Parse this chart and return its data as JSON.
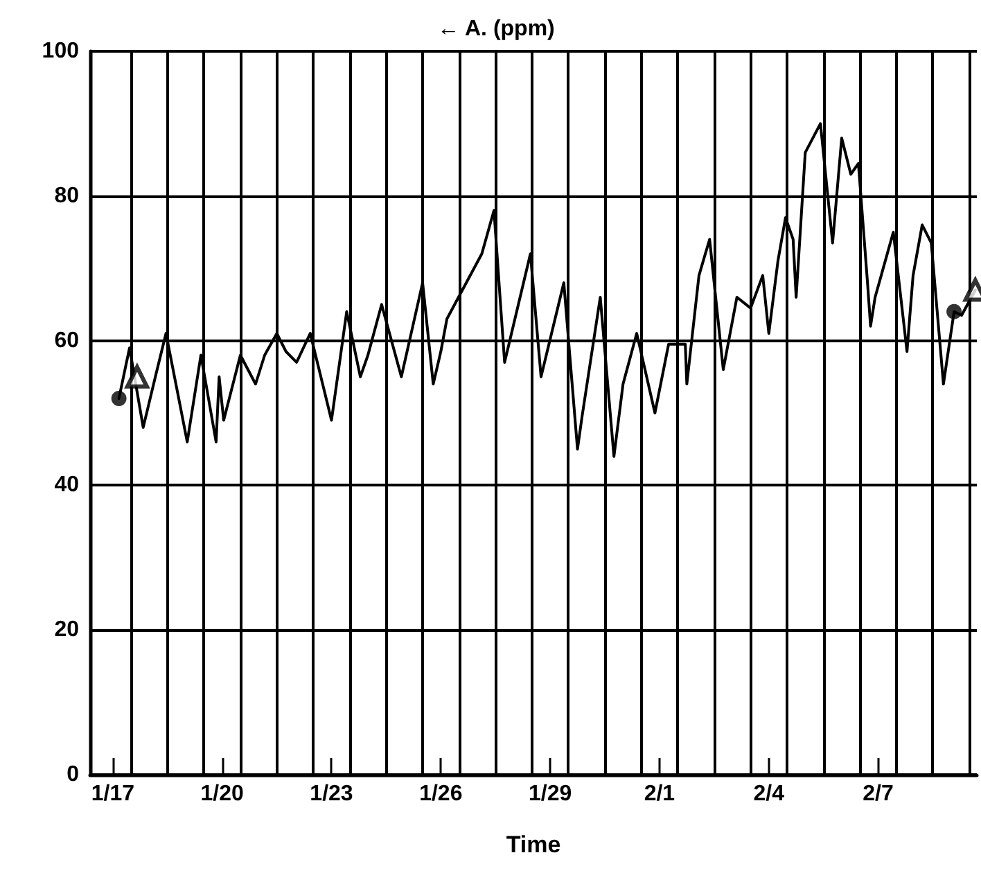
{
  "chart_data": {
    "type": "line",
    "title": "← A. (ppm)",
    "xlabel": "Time",
    "xlim": [
      "--01-16T09:00",
      "--02-09T17:00"
    ],
    "ylim": [
      0,
      100
    ],
    "yticks": [
      0,
      20,
      40,
      60,
      80,
      100
    ],
    "xticks": [
      {
        "value": "--01-17",
        "label": "1/17"
      },
      {
        "value": "--01-20",
        "label": "1/20"
      },
      {
        "value": "--01-23",
        "label": "1/23"
      },
      {
        "value": "--01-26",
        "label": "1/26"
      },
      {
        "value": "--01-29",
        "label": "1/29"
      },
      {
        "value": "--02-01",
        "label": "2/1"
      },
      {
        "value": "--02-04",
        "label": "2/4"
      },
      {
        "value": "--02-07",
        "label": "2/7"
      },
      {
        "value": "--01-17T12:00",
        "label": null
      },
      {
        "value": "--01-18T12:00",
        "label": null
      },
      {
        "value": "--01-19T12:00",
        "label": null
      },
      {
        "value": "--01-20T12:00",
        "label": null
      },
      {
        "value": "--01-21T12:00",
        "label": null
      },
      {
        "value": "--01-22T12:00",
        "label": null
      },
      {
        "value": "--01-23T12:00",
        "label": null
      },
      {
        "value": "--01-24T12:00",
        "label": null
      },
      {
        "value": "--01-25T12:00",
        "label": null
      },
      {
        "value": "--01-26T12:00",
        "label": null
      },
      {
        "value": "--01-27T12:00",
        "label": null
      },
      {
        "value": "--01-28T12:00",
        "label": null
      },
      {
        "value": "--01-29T12:00",
        "label": null
      },
      {
        "value": "--01-30T12:00",
        "label": null
      },
      {
        "value": "--01-31T12:00",
        "label": null
      },
      {
        "value": "--02-01T12:00",
        "label": null
      },
      {
        "value": "--02-02T12:00",
        "label": null
      },
      {
        "value": "--02-03T12:00",
        "label": null
      },
      {
        "value": "--02-04T12:00",
        "label": null
      },
      {
        "value": "--02-05T12:00",
        "label": null
      },
      {
        "value": "--02-06T12:00",
        "label": null
      },
      {
        "value": "--02-07T12:00",
        "label": null
      },
      {
        "value": "--02-08T12:00",
        "label": null
      },
      {
        "value": "--02-09T12:00",
        "label": null
      }
    ],
    "grid": true,
    "series": [
      {
        "color": "#000000",
        "marker": "none",
        "x": [
          "--01-17T04:00",
          "--01-17T11:00",
          "--01-17T20:00",
          "--01-18T04:00",
          "--01-18T11:00",
          "--01-19T01:00",
          "--01-19T10:00",
          "--01-19T20:00",
          "--01-19T22:00",
          "--01-20T01:00",
          "--01-20T12:00",
          "--01-20T22:00",
          "--01-21T04:00",
          "--01-21T12:00",
          "--01-21T18:00",
          "--01-22T01:00",
          "--01-22T10:00",
          "--01-23T00:00",
          "--01-23T10:00",
          "--01-23T19:00",
          "--01-24T00:00",
          "--01-24T09:00",
          "--01-24T22:00",
          "--01-25T12:00",
          "--01-25T19:00",
          "--01-26T00:00",
          "--01-26T04:00",
          "--01-27T03:00",
          "--01-27T11:00",
          "--01-27T18:00",
          "--01-28T11:00",
          "--01-28T18:00",
          "--01-29T09:00",
          "--01-29T18:00",
          "--01-29T21:00",
          "--01-30T09:00",
          "--01-30T18:00",
          "--01-31T00:00",
          "--01-31T09:00",
          "--01-31T21:00",
          "--02-01T06:00",
          "--02-01T17:00",
          "--02-01T18:00",
          "--02-02T02:00",
          "--02-02T09:00",
          "--02-02T18:00",
          "--02-03T03:00",
          "--02-03T12:00",
          "--02-03T20:00",
          "--02-04T00:00",
          "--02-04T06:00",
          "--02-04T11:00",
          "--02-04T16:00",
          "--02-04T18:00",
          "--02-05T00:00",
          "--02-05T10:00",
          "--02-05T18:00",
          "--02-06T00:00",
          "--02-06T06:00",
          "--02-06T11:00",
          "--02-06T17:00",
          "--02-06T19:00",
          "--02-06T22:00",
          "--02-07T10:00",
          "--02-07T19:00",
          "--02-07T23:00",
          "--02-08T05:00",
          "--02-08T11:00",
          "--02-08T19:00",
          "--02-09T02:00",
          "--02-09T07:00",
          "--02-09T16:00"
        ],
        "values": [
          52,
          59,
          48,
          55,
          61,
          46,
          58,
          46,
          55,
          49,
          58,
          54,
          58,
          61,
          58.5,
          57,
          61,
          49,
          64,
          55,
          58,
          65,
          55,
          68,
          54,
          58.5,
          63,
          72,
          78,
          57,
          72,
          55,
          68,
          45,
          49.5,
          66,
          44,
          54,
          61,
          50,
          59.5,
          59.5,
          54,
          69,
          74,
          56,
          66,
          64.5,
          69,
          61,
          71,
          77,
          74,
          66,
          86,
          90,
          73.5,
          88,
          83,
          84.5,
          68,
          62,
          66,
          75,
          58.5,
          69,
          76,
          73.5,
          54,
          64,
          63.5,
          67
        ]
      },
      {
        "type": "scatter",
        "color": "#000000",
        "marker": "circle",
        "x": [
          "--01-17T04:00",
          "--02-09T02:00"
        ],
        "values": [
          52,
          64
        ]
      },
      {
        "type": "scatter",
        "color": "#000000",
        "marker": "triangle",
        "x": [
          "--01-17T16:00",
          "--02-09T16:00"
        ],
        "values": [
          55,
          67
        ]
      }
    ]
  }
}
